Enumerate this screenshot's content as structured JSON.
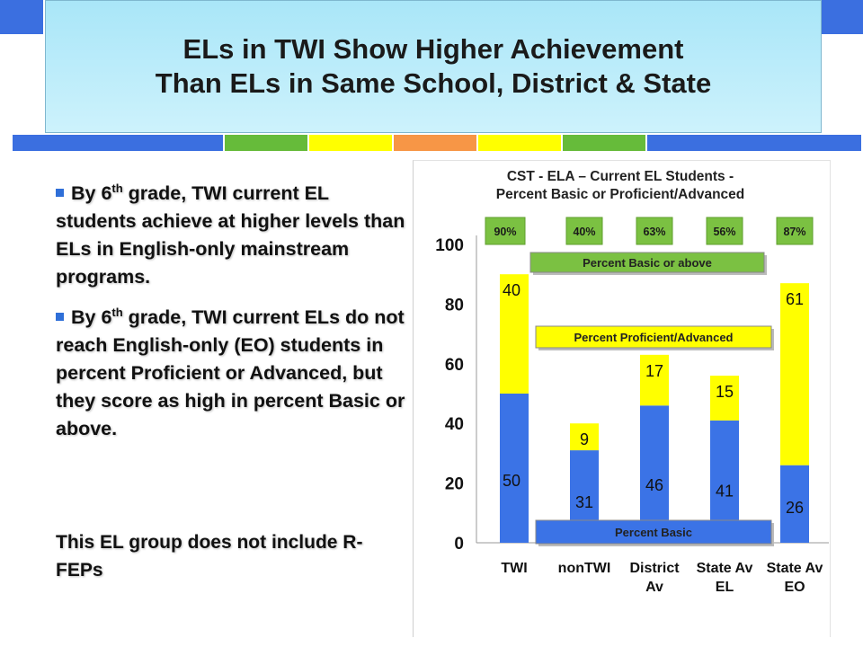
{
  "slide": {
    "title_line1": "ELs in TWI Show Higher Achievement",
    "title_line2": "Than ELs in Same School, District & State",
    "strip_colors": [
      "#3b6fe0",
      "#66bb3a",
      "#ffff00",
      "#f79646",
      "#ffff00",
      "#66bb3a",
      "#3b6fe0"
    ],
    "bullet1": {
      "pre": "By 6",
      "sup": "th",
      "post": " grade, TWI current EL students achieve at higher levels than ELs in English-only mainstream programs."
    },
    "bullet2": {
      "pre": "By 6",
      "sup": "th",
      "post": " grade, TWI current ELs do not reach English-only (EO) students in percent Proficient or Advanced, but they score as high in percent Basic or above."
    },
    "note": "This EL group does not include R-FEPs"
  },
  "chart_data": {
    "type": "bar",
    "stacked": true,
    "title_line1": "CST - ELA – Current EL Students -",
    "title_line2": "Percent Basic or Proficient/Advanced",
    "categories": [
      "TWI",
      "nonTWI",
      "District Av",
      "State Av EL",
      "State Av EO"
    ],
    "series": [
      {
        "name": "Percent Basic",
        "color": "#3b73e6",
        "values": [
          50,
          31,
          46,
          41,
          26
        ]
      },
      {
        "name": "Percent Proficient/Advanced",
        "color": "#ffff00",
        "values": [
          40,
          9,
          17,
          15,
          61
        ]
      }
    ],
    "totals_labels": [
      "90%",
      "40%",
      "63%",
      "56%",
      "87%"
    ],
    "basic_or_above_label": "Percent Basic or above",
    "yticks": [
      0,
      20,
      40,
      60,
      80,
      100
    ],
    "ylim": [
      0,
      100
    ],
    "grid": false,
    "colors": {
      "totals_box": "#7bc142",
      "totals_text": "#1a1a1a"
    }
  }
}
